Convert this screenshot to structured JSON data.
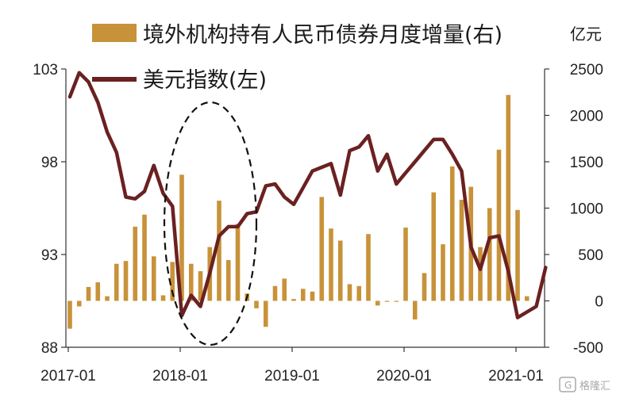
{
  "chart_data": {
    "type": "bar+line",
    "x_labels": [
      "2017-01",
      "2018-01",
      "2019-01",
      "2020-01",
      "2021-01"
    ],
    "unit_right": "亿元",
    "grid": false,
    "legend_placement": "top",
    "series": [
      {
        "name": "境外机构持有人民币债券月度增量(右)",
        "kind": "bar",
        "axis": "right",
        "color": "#C8923A",
        "values": [
          -300,
          -60,
          150,
          200,
          50,
          400,
          430,
          800,
          930,
          480,
          60,
          420,
          1360,
          400,
          320,
          580,
          1080,
          440,
          830,
          80,
          -80,
          -280,
          160,
          240,
          20,
          130,
          100,
          1120,
          780,
          650,
          180,
          160,
          720,
          -50,
          -10,
          -10,
          790,
          -200,
          300,
          1170,
          610,
          1450,
          1090,
          1230,
          580,
          1000,
          1630,
          2220,
          980,
          50
        ]
      },
      {
        "name": "美元指数(左)",
        "kind": "line",
        "axis": "left",
        "color": "#6B2121",
        "values": [
          101.5,
          102.8,
          102.3,
          101.2,
          99.6,
          98.5,
          96.1,
          96.0,
          96.4,
          97.8,
          96.3,
          95.6,
          89.7,
          90.8,
          90.2,
          92.0,
          94.0,
          94.5,
          94.5,
          95.2,
          95.3,
          96.7,
          96.8,
          96.1,
          95.7,
          96.6,
          97.5,
          97.7,
          97.9,
          96.2,
          98.6,
          98.8,
          99.4,
          97.5,
          98.4,
          96.8,
          97.4,
          98.0,
          98.6,
          99.2,
          99.2,
          98.4,
          97.5,
          93.4,
          92.2,
          93.9,
          94.0,
          92.1,
          89.6,
          89.9,
          90.2,
          92.3
        ]
      }
    ],
    "y_left": {
      "min": 88,
      "max": 103,
      "ticks": [
        88,
        93,
        98,
        103
      ]
    },
    "y_right": {
      "min": -500,
      "max": 2500,
      "ticks": [
        -500,
        0,
        500,
        1000,
        1500,
        2000,
        2500
      ]
    }
  },
  "watermark": "格隆汇"
}
